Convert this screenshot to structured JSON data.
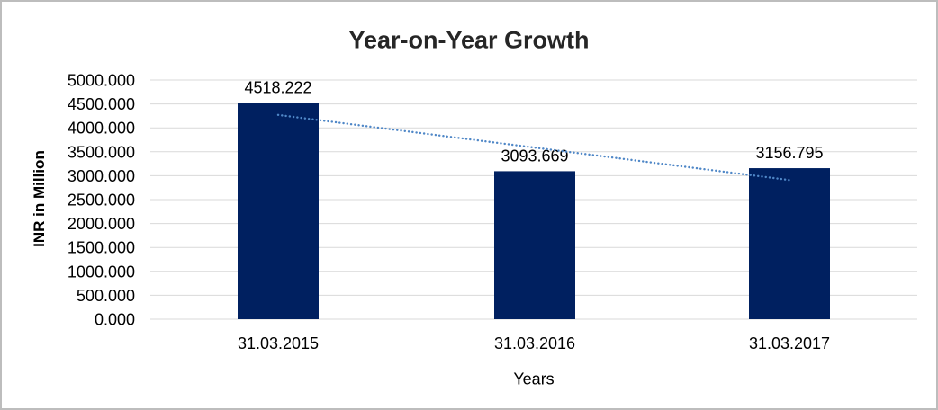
{
  "window": {
    "background": "#ffffff",
    "border_color": "#bdbdbd"
  },
  "chart_data": {
    "type": "bar",
    "title": "Year-on-Year Growth",
    "xlabel": "Years",
    "ylabel": "INR in Million",
    "categories": [
      "31.03.2015",
      "31.03.2016",
      "31.03.2017"
    ],
    "values": [
      4518.222,
      3093.669,
      3156.795
    ],
    "data_labels": [
      "4518.222",
      "3093.669",
      "3156.795"
    ],
    "yticks": [
      "0.000",
      "500.000",
      "1000.000",
      "1500.000",
      "2000.000",
      "2500.000",
      "3000.000",
      "3500.000",
      "4000.000",
      "4500.000",
      "5000.000"
    ],
    "ylim": [
      0,
      5000
    ],
    "grid": true,
    "legend": false,
    "bar_color": "#002060",
    "gridline_color": "#d9d9d9",
    "text_color": "#000000",
    "title_color": "#262626",
    "trendline": {
      "type": "linear",
      "style": "dotted",
      "color": "#4f87c7"
    }
  }
}
